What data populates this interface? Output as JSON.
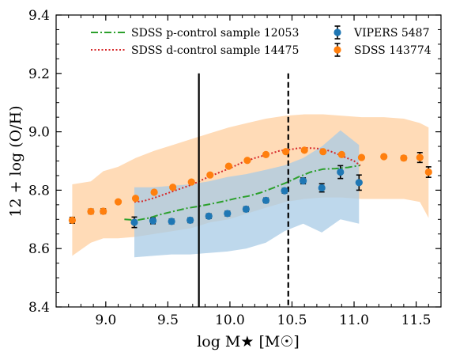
{
  "chart_data": {
    "type": "scatter",
    "xlabel": "log M★ [M☉]",
    "ylabel": "12 + log (O/H)",
    "xlim": [
      8.6,
      11.7
    ],
    "ylim": [
      8.4,
      9.4
    ],
    "xticks": [
      9.0,
      9.5,
      10.0,
      10.5,
      11.0,
      11.5
    ],
    "xtick_labels": [
      "9.0",
      "9.5",
      "10.0",
      "10.5",
      "11.0",
      "11.5"
    ],
    "yticks": [
      8.4,
      8.6,
      8.8,
      9.0,
      9.2,
      9.4
    ],
    "ytick_labels": [
      "8.4",
      "8.6",
      "8.8",
      "9.0",
      "9.2",
      "9.4"
    ],
    "grid": false,
    "legend_placement": "top",
    "colors": {
      "vipers": "#1f77b4",
      "sdss": "#ff7f0e",
      "vipers_band": "#a8cbe6",
      "sdss_band": "#ffcf9f",
      "p_control": "#2ca02c",
      "d_control": "#d62728",
      "error_bars": "#000000"
    },
    "series": [
      {
        "name": "VIPERS 5487",
        "kind": "points",
        "x": [
          9.23,
          9.38,
          9.53,
          9.68,
          9.83,
          9.98,
          10.13,
          10.29,
          10.44,
          10.59,
          10.74,
          10.89,
          11.04
        ],
        "y": [
          8.69,
          8.695,
          8.693,
          8.697,
          8.711,
          8.72,
          8.735,
          8.765,
          8.798,
          8.832,
          8.808,
          8.862,
          8.826
        ],
        "yerr": [
          0.018,
          0.01,
          0.008,
          0.008,
          0.008,
          0.008,
          0.008,
          0.008,
          0.008,
          0.01,
          0.014,
          0.022,
          0.026
        ],
        "band_x": [
          9.23,
          9.38,
          9.53,
          9.68,
          9.83,
          9.98,
          10.13,
          10.29,
          10.44,
          10.59,
          10.74,
          10.89,
          11.04
        ],
        "band_low": [
          8.57,
          8.575,
          8.58,
          8.58,
          8.585,
          8.59,
          8.6,
          8.62,
          8.66,
          8.685,
          8.655,
          8.7,
          8.685
        ],
        "band_high": [
          8.81,
          8.81,
          8.815,
          8.82,
          8.83,
          8.845,
          8.855,
          8.87,
          8.885,
          8.91,
          8.95,
          9.005,
          8.955
        ]
      },
      {
        "name": "SDSS 143774",
        "kind": "points",
        "x": [
          8.73,
          8.88,
          8.98,
          9.1,
          9.24,
          9.39,
          9.54,
          9.69,
          9.84,
          9.99,
          10.14,
          10.29,
          10.45,
          10.6,
          10.75,
          10.9,
          11.06,
          11.24,
          11.4,
          11.53,
          11.6
        ],
        "y": [
          8.697,
          8.727,
          8.728,
          8.76,
          8.772,
          8.793,
          8.81,
          8.828,
          8.852,
          8.882,
          8.902,
          8.922,
          8.932,
          8.937,
          8.932,
          8.922,
          8.912,
          8.915,
          8.91,
          8.912,
          8.862
        ],
        "yerr": [
          0.01,
          0.008,
          0.008,
          0.005,
          0.004,
          0.003,
          0.003,
          0.003,
          0.003,
          0.003,
          0.003,
          0.003,
          0.003,
          0.003,
          0.003,
          0.003,
          0.004,
          0.005,
          0.007,
          0.017,
          0.018
        ],
        "band_x": [
          8.73,
          8.88,
          8.98,
          9.1,
          9.24,
          9.39,
          9.54,
          9.69,
          9.84,
          9.99,
          10.14,
          10.29,
          10.45,
          10.6,
          10.75,
          10.9,
          11.06,
          11.24,
          11.4,
          11.53,
          11.6
        ],
        "band_low": [
          8.575,
          8.62,
          8.635,
          8.635,
          8.64,
          8.65,
          8.66,
          8.67,
          8.69,
          8.7,
          8.72,
          8.74,
          8.76,
          8.77,
          8.775,
          8.775,
          8.77,
          8.77,
          8.77,
          8.76,
          8.705
        ],
        "band_high": [
          8.82,
          8.83,
          8.865,
          8.88,
          8.91,
          8.935,
          8.955,
          8.975,
          8.995,
          9.015,
          9.03,
          9.045,
          9.055,
          9.06,
          9.06,
          9.055,
          9.05,
          9.05,
          9.045,
          9.03,
          9.015
        ]
      },
      {
        "name": "SDSS p-control sample 12053",
        "kind": "line",
        "style": "dashdot",
        "x": [
          9.15,
          9.25,
          9.35,
          9.45,
          9.55,
          9.65,
          9.75,
          9.85,
          9.95,
          10.05,
          10.15,
          10.25,
          10.35,
          10.45,
          10.55,
          10.65,
          10.75,
          10.85,
          10.95,
          11.05
        ],
        "y": [
          8.7,
          8.697,
          8.705,
          8.718,
          8.728,
          8.738,
          8.745,
          8.753,
          8.762,
          8.772,
          8.78,
          8.792,
          8.808,
          8.825,
          8.845,
          8.862,
          8.872,
          8.874,
          8.878,
          8.885
        ]
      },
      {
        "name": "SDSS d-control sample 14475",
        "kind": "line",
        "style": "dotted",
        "x": [
          9.23,
          9.3,
          9.4,
          9.5,
          9.6,
          9.7,
          9.8,
          9.9,
          10.0,
          10.1,
          10.2,
          10.3,
          10.4,
          10.5,
          10.55,
          10.6,
          10.7,
          10.8,
          10.9,
          11.0,
          11.05
        ],
        "y": [
          8.76,
          8.762,
          8.775,
          8.79,
          8.805,
          8.82,
          8.84,
          8.858,
          8.875,
          8.895,
          8.91,
          8.922,
          8.935,
          8.94,
          8.944,
          8.945,
          8.943,
          8.935,
          8.918,
          8.9,
          8.885
        ]
      }
    ],
    "vertical_lines": [
      {
        "x": 9.75,
        "style": "solid",
        "y_top": 9.2
      },
      {
        "x": 10.47,
        "style": "dashed",
        "y_top": 9.2
      }
    ]
  }
}
